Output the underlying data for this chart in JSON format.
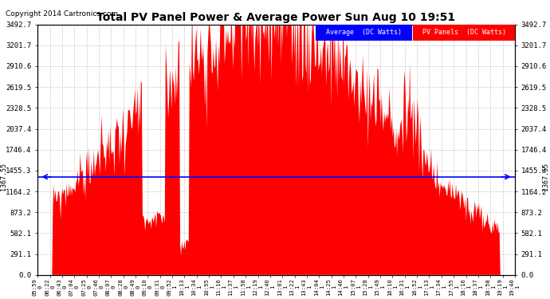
{
  "title": "Total PV Panel Power & Average Power Sun Aug 10 19:51",
  "copyright": "Copyright 2014 Cartronics.com",
  "average_value": 1367.55,
  "y_ticks": [
    0.0,
    291.1,
    582.1,
    873.2,
    1164.2,
    1455.3,
    1746.4,
    2037.4,
    2328.5,
    2619.5,
    2910.6,
    3201.7,
    3492.7
  ],
  "y_max": 3492.7,
  "bg_color": "#ffffff",
  "plot_bg_color": "#ffffff",
  "fill_color": "#ff0000",
  "line_color": "#ff0000",
  "avg_line_color": "#0000ff",
  "grid_color": "#bbbbbb",
  "legend_avg_label": "Average  (DC Watts)",
  "legend_pv_label": "PV Panels  (DC Watts)",
  "legend_avg_bg": "#0000ff",
  "legend_pv_bg": "#ff0000",
  "x_tick_labels": [
    "05:59",
    "06:22",
    "06:43",
    "07:04",
    "07:25",
    "07:46",
    "08:07",
    "08:28",
    "08:49",
    "09:10",
    "09:31",
    "09:52",
    "10:13",
    "10:34",
    "10:55",
    "11:16",
    "11:37",
    "11:58",
    "12:19",
    "12:40",
    "13:01",
    "13:22",
    "13:43",
    "14:04",
    "14:25",
    "14:46",
    "15:07",
    "15:28",
    "15:49",
    "16:10",
    "16:31",
    "16:52",
    "17:13",
    "17:34",
    "17:55",
    "18:16",
    "18:37",
    "18:58",
    "19:19",
    "19:40"
  ],
  "x_tick_row2": [
    "0",
    "0",
    "0",
    "0",
    "0",
    "0",
    "0",
    "0",
    "0",
    "0",
    "0",
    "1",
    "1",
    "1",
    "1",
    "1",
    "1",
    "1",
    "1",
    "1",
    "1",
    "1",
    "1",
    "1",
    "1",
    "1",
    "1",
    "1",
    "1",
    "1",
    "1",
    "1",
    "1",
    "1",
    "1",
    "1",
    "1",
    "1",
    "1",
    "1"
  ]
}
